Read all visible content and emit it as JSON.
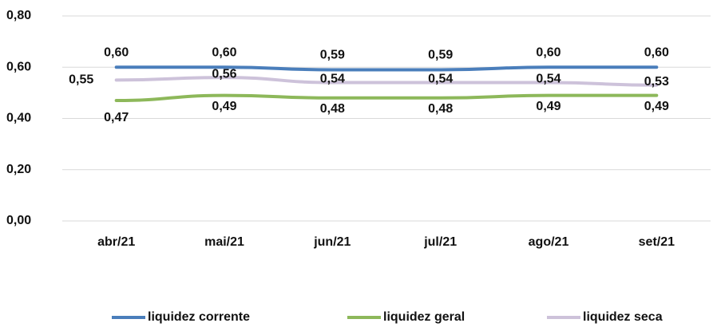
{
  "chart_data": {
    "type": "line",
    "categories": [
      "abr/21",
      "mai/21",
      "jun/21",
      "jul/21",
      "ago/21",
      "set/21"
    ],
    "series": [
      {
        "name": "liquidez corrente",
        "color": "#4a7ebb",
        "values": [
          0.6,
          0.6,
          0.59,
          0.59,
          0.6,
          0.6
        ],
        "value_labels": [
          "0,60",
          "0,60",
          "0,59",
          "0,59",
          "0,60",
          "0,60"
        ]
      },
      {
        "name": "liquidez geral",
        "color": "#8db85a",
        "values": [
          0.47,
          0.49,
          0.48,
          0.48,
          0.49,
          0.49
        ],
        "value_labels": [
          "0,47",
          "0,49",
          "0,48",
          "0,48",
          "0,49",
          "0,49"
        ]
      },
      {
        "name": "liquidez seca",
        "color": "#cdc2da",
        "values": [
          0.55,
          0.56,
          0.54,
          0.54,
          0.54,
          0.53
        ],
        "value_labels": [
          "0,55",
          "0,56",
          "0,54",
          "0,54",
          "0,54",
          "0,53"
        ]
      }
    ],
    "ylim": [
      0,
      0.8
    ],
    "yticks": [
      {
        "value": 0,
        "label": "0,00"
      },
      {
        "value": 0.2,
        "label": "0,20"
      },
      {
        "value": 0.4,
        "label": "0,40"
      },
      {
        "value": 0.6,
        "label": "0,60"
      },
      {
        "value": 0.8,
        "label": "0,80"
      }
    ],
    "grid": true,
    "legend": "bottom"
  }
}
